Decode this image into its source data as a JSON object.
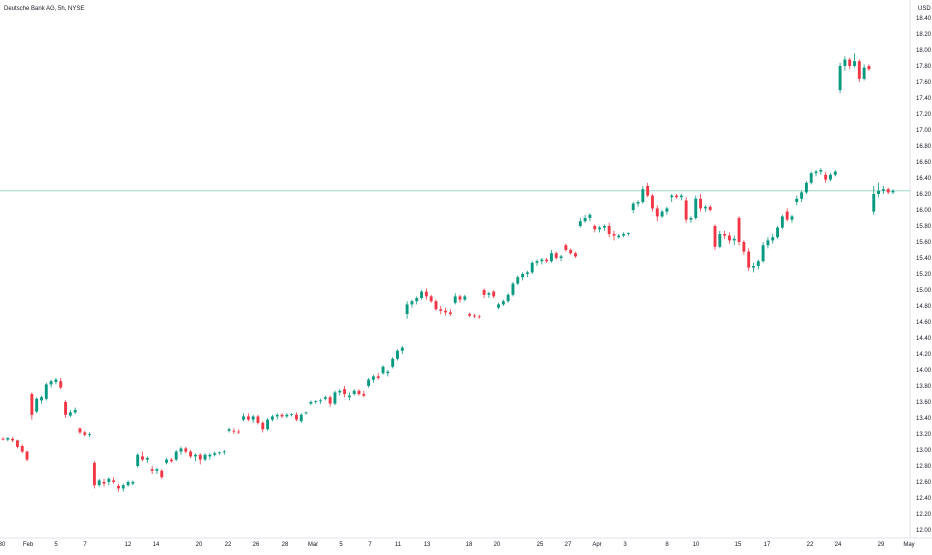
{
  "header": {
    "title": "Deutsche Bank AG, 5h, NYSE"
  },
  "chart_data": {
    "type": "candlestick",
    "title": "Deutsche Bank AG, 5h, NYSE",
    "currency": "USD",
    "ylim": [
      12.0,
      18.5
    ],
    "y_ticks": [
      "12.00",
      "12.20",
      "12.40",
      "12.60",
      "12.80",
      "13.00",
      "13.20",
      "13.40",
      "13.60",
      "13.80",
      "14.00",
      "14.20",
      "14.40",
      "14.60",
      "14.80",
      "15.00",
      "15.20",
      "15.40",
      "15.60",
      "15.80",
      "16.00",
      "16.20",
      "16.40",
      "16.60",
      "16.80",
      "17.00",
      "17.20",
      "17.40",
      "17.60",
      "17.80",
      "18.00",
      "18.20",
      "18.40"
    ],
    "x_ticks": [
      "30",
      "Feb",
      "5",
      "7",
      "12",
      "14",
      "20",
      "22",
      "26",
      "28",
      "Mar",
      "5",
      "7",
      "11",
      "13",
      "18",
      "20",
      "25",
      "27",
      "Apr",
      "3",
      "8",
      "10",
      "15",
      "17",
      "22",
      "24",
      "29",
      "May"
    ],
    "last_price": 16.24,
    "colors": {
      "up": "#089981",
      "down": "#f23645",
      "price_line": "#089981",
      "axis_text": "#131722",
      "grid": "#f0f3fa"
    },
    "grid": false,
    "price_axis": "right",
    "up_candle_color": "#089981",
    "down_candle_color": "#f23645",
    "candles": [
      {
        "o": 13.14,
        "h": 13.16,
        "l": 13.12,
        "c": 13.13
      },
      {
        "o": 13.13,
        "h": 13.16,
        "l": 13.11,
        "c": 13.15
      },
      {
        "o": 13.14,
        "h": 13.16,
        "l": 13.1,
        "c": 13.12
      },
      {
        "o": 13.12,
        "h": 13.13,
        "l": 13.02,
        "c": 13.04
      },
      {
        "o": 13.05,
        "h": 13.07,
        "l": 12.96,
        "c": 12.98
      },
      {
        "o": 12.98,
        "h": 12.99,
        "l": 12.86,
        "c": 12.88
      },
      {
        "o": 13.7,
        "h": 13.72,
        "l": 13.38,
        "c": 13.44
      },
      {
        "o": 13.48,
        "h": 13.66,
        "l": 13.46,
        "c": 13.64
      },
      {
        "o": 13.62,
        "h": 13.68,
        "l": 13.58,
        "c": 13.66
      },
      {
        "o": 13.64,
        "h": 13.84,
        "l": 13.62,
        "c": 13.82
      },
      {
        "o": 13.82,
        "h": 13.88,
        "l": 13.78,
        "c": 13.86
      },
      {
        "o": 13.85,
        "h": 13.9,
        "l": 13.82,
        "c": 13.88
      },
      {
        "o": 13.86,
        "h": 13.9,
        "l": 13.76,
        "c": 13.78
      },
      {
        "o": 13.6,
        "h": 13.62,
        "l": 13.4,
        "c": 13.44
      },
      {
        "o": 13.43,
        "h": 13.5,
        "l": 13.41,
        "c": 13.47
      },
      {
        "o": 13.47,
        "h": 13.53,
        "l": 13.45,
        "c": 13.5
      },
      {
        "o": 13.27,
        "h": 13.28,
        "l": 13.2,
        "c": 13.22
      },
      {
        "o": 13.22,
        "h": 13.24,
        "l": 13.17,
        "c": 13.19
      },
      {
        "o": 13.19,
        "h": 13.22,
        "l": 13.16,
        "c": 13.2
      },
      {
        "o": 12.84,
        "h": 12.86,
        "l": 12.52,
        "c": 12.56
      },
      {
        "o": 12.56,
        "h": 12.64,
        "l": 12.54,
        "c": 12.62
      },
      {
        "o": 12.6,
        "h": 12.64,
        "l": 12.54,
        "c": 12.58
      },
      {
        "o": 12.6,
        "h": 12.66,
        "l": 12.56,
        "c": 12.64
      },
      {
        "o": 12.62,
        "h": 12.66,
        "l": 12.58,
        "c": 12.6
      },
      {
        "o": 12.55,
        "h": 12.58,
        "l": 12.48,
        "c": 12.52
      },
      {
        "o": 12.52,
        "h": 12.58,
        "l": 12.48,
        "c": 12.56
      },
      {
        "o": 12.56,
        "h": 12.62,
        "l": 12.54,
        "c": 12.6
      },
      {
        "o": 12.58,
        "h": 12.62,
        "l": 12.56,
        "c": 12.6
      },
      {
        "o": 12.8,
        "h": 12.96,
        "l": 12.78,
        "c": 12.94
      },
      {
        "o": 12.92,
        "h": 12.98,
        "l": 12.86,
        "c": 12.88
      },
      {
        "o": 12.88,
        "h": 12.92,
        "l": 12.84,
        "c": 12.9
      },
      {
        "o": 12.76,
        "h": 12.8,
        "l": 12.7,
        "c": 12.74
      },
      {
        "o": 12.74,
        "h": 12.78,
        "l": 12.7,
        "c": 12.76
      },
      {
        "o": 12.74,
        "h": 12.76,
        "l": 12.64,
        "c": 12.66
      },
      {
        "o": 12.84,
        "h": 12.9,
        "l": 12.82,
        "c": 12.88
      },
      {
        "o": 12.88,
        "h": 12.9,
        "l": 12.84,
        "c": 12.86
      },
      {
        "o": 12.88,
        "h": 13.0,
        "l": 12.86,
        "c": 12.98
      },
      {
        "o": 12.98,
        "h": 13.04,
        "l": 12.94,
        "c": 13.02
      },
      {
        "o": 13.02,
        "h": 13.04,
        "l": 12.96,
        "c": 12.98
      },
      {
        "o": 12.98,
        "h": 13.0,
        "l": 12.9,
        "c": 12.92
      },
      {
        "o": 12.92,
        "h": 12.96,
        "l": 12.86,
        "c": 12.94
      },
      {
        "o": 12.94,
        "h": 12.96,
        "l": 12.82,
        "c": 12.88
      },
      {
        "o": 12.88,
        "h": 12.96,
        "l": 12.86,
        "c": 12.94
      },
      {
        "o": 12.92,
        "h": 12.96,
        "l": 12.88,
        "c": 12.94
      },
      {
        "o": 12.94,
        "h": 12.98,
        "l": 12.92,
        "c": 12.96
      },
      {
        "o": 12.96,
        "h": 12.98,
        "l": 12.94,
        "c": 12.97
      },
      {
        "o": 12.97,
        "h": 13.0,
        "l": 12.94,
        "c": 12.98
      },
      {
        "o": 13.24,
        "h": 13.28,
        "l": 13.22,
        "c": 13.26
      },
      {
        "o": 13.24,
        "h": 13.27,
        "l": 13.2,
        "c": 13.23
      },
      {
        "o": 13.23,
        "h": 13.26,
        "l": 13.2,
        "c": 13.22
      },
      {
        "o": 13.38,
        "h": 13.46,
        "l": 13.36,
        "c": 13.42
      },
      {
        "o": 13.42,
        "h": 13.46,
        "l": 13.36,
        "c": 13.38
      },
      {
        "o": 13.38,
        "h": 13.44,
        "l": 13.34,
        "c": 13.42
      },
      {
        "o": 13.42,
        "h": 13.44,
        "l": 13.32,
        "c": 13.34
      },
      {
        "o": 13.34,
        "h": 13.36,
        "l": 13.22,
        "c": 13.26
      },
      {
        "o": 13.26,
        "h": 13.4,
        "l": 13.24,
        "c": 13.38
      },
      {
        "o": 13.38,
        "h": 13.44,
        "l": 13.36,
        "c": 13.42
      },
      {
        "o": 13.42,
        "h": 13.46,
        "l": 13.38,
        "c": 13.44
      },
      {
        "o": 13.44,
        "h": 13.46,
        "l": 13.4,
        "c": 13.42
      },
      {
        "o": 13.42,
        "h": 13.46,
        "l": 13.4,
        "c": 13.44
      },
      {
        "o": 13.44,
        "h": 13.46,
        "l": 13.42,
        "c": 13.45
      },
      {
        "o": 13.44,
        "h": 13.47,
        "l": 13.36,
        "c": 13.38
      },
      {
        "o": 13.36,
        "h": 13.46,
        "l": 13.34,
        "c": 13.44
      },
      {
        "o": 13.46,
        "h": 13.48,
        "l": 13.44,
        "c": 13.47
      },
      {
        "o": 13.58,
        "h": 13.62,
        "l": 13.56,
        "c": 13.6
      },
      {
        "o": 13.6,
        "h": 13.62,
        "l": 13.58,
        "c": 13.61
      },
      {
        "o": 13.61,
        "h": 13.64,
        "l": 13.58,
        "c": 13.62
      },
      {
        "o": 13.64,
        "h": 13.68,
        "l": 13.62,
        "c": 13.66
      },
      {
        "o": 13.66,
        "h": 13.68,
        "l": 13.54,
        "c": 13.58
      },
      {
        "o": 13.58,
        "h": 13.74,
        "l": 13.56,
        "c": 13.72
      },
      {
        "o": 13.72,
        "h": 13.76,
        "l": 13.68,
        "c": 13.74
      },
      {
        "o": 13.76,
        "h": 13.8,
        "l": 13.66,
        "c": 13.7
      },
      {
        "o": 13.66,
        "h": 13.72,
        "l": 13.62,
        "c": 13.68
      },
      {
        "o": 13.7,
        "h": 13.76,
        "l": 13.68,
        "c": 13.74
      },
      {
        "o": 13.74,
        "h": 13.76,
        "l": 13.68,
        "c": 13.7
      },
      {
        "o": 13.7,
        "h": 13.74,
        "l": 13.66,
        "c": 13.68
      },
      {
        "o": 13.8,
        "h": 13.9,
        "l": 13.78,
        "c": 13.88
      },
      {
        "o": 13.88,
        "h": 13.94,
        "l": 13.84,
        "c": 13.92
      },
      {
        "o": 13.92,
        "h": 13.96,
        "l": 13.88,
        "c": 13.9
      },
      {
        "o": 13.96,
        "h": 14.06,
        "l": 13.94,
        "c": 14.04
      },
      {
        "o": 13.96,
        "h": 14.0,
        "l": 13.92,
        "c": 13.98
      },
      {
        "o": 14.04,
        "h": 14.16,
        "l": 14.02,
        "c": 14.14
      },
      {
        "o": 14.14,
        "h": 14.26,
        "l": 14.12,
        "c": 14.24
      },
      {
        "o": 14.24,
        "h": 14.3,
        "l": 14.2,
        "c": 14.28
      },
      {
        "o": 14.7,
        "h": 14.86,
        "l": 14.64,
        "c": 14.82
      },
      {
        "o": 14.82,
        "h": 14.88,
        "l": 14.78,
        "c": 14.86
      },
      {
        "o": 14.86,
        "h": 14.92,
        "l": 14.82,
        "c": 14.9
      },
      {
        "o": 14.9,
        "h": 15.0,
        "l": 14.88,
        "c": 14.98
      },
      {
        "o": 14.98,
        "h": 15.02,
        "l": 14.88,
        "c": 14.92
      },
      {
        "o": 14.92,
        "h": 14.94,
        "l": 14.84,
        "c": 14.86
      },
      {
        "o": 14.86,
        "h": 14.88,
        "l": 14.74,
        "c": 14.76
      },
      {
        "o": 14.76,
        "h": 14.8,
        "l": 14.7,
        "c": 14.74
      },
      {
        "o": 14.74,
        "h": 14.78,
        "l": 14.68,
        "c": 14.72
      },
      {
        "o": 14.72,
        "h": 14.76,
        "l": 14.68,
        "c": 14.7
      },
      {
        "o": 14.84,
        "h": 14.96,
        "l": 14.82,
        "c": 14.92
      },
      {
        "o": 14.92,
        "h": 14.94,
        "l": 14.84,
        "c": 14.88
      },
      {
        "o": 14.88,
        "h": 14.94,
        "l": 14.86,
        "c": 14.92
      },
      {
        "o": 14.7,
        "h": 14.72,
        "l": 14.66,
        "c": 14.68
      },
      {
        "o": 14.68,
        "h": 14.7,
        "l": 14.65,
        "c": 14.67
      },
      {
        "o": 14.67,
        "h": 14.69,
        "l": 14.64,
        "c": 14.66
      },
      {
        "o": 15.0,
        "h": 15.02,
        "l": 14.9,
        "c": 14.94
      },
      {
        "o": 14.94,
        "h": 14.98,
        "l": 14.9,
        "c": 14.96
      },
      {
        "o": 14.98,
        "h": 15.0,
        "l": 14.9,
        "c": 14.92
      },
      {
        "o": 14.78,
        "h": 14.84,
        "l": 14.76,
        "c": 14.82
      },
      {
        "o": 14.82,
        "h": 14.88,
        "l": 14.8,
        "c": 14.86
      },
      {
        "o": 14.86,
        "h": 14.96,
        "l": 14.84,
        "c": 14.94
      },
      {
        "o": 14.94,
        "h": 15.1,
        "l": 14.92,
        "c": 15.08
      },
      {
        "o": 15.08,
        "h": 15.18,
        "l": 15.06,
        "c": 15.16
      },
      {
        "o": 15.16,
        "h": 15.22,
        "l": 15.12,
        "c": 15.2
      },
      {
        "o": 15.2,
        "h": 15.24,
        "l": 15.16,
        "c": 15.22
      },
      {
        "o": 15.22,
        "h": 15.36,
        "l": 15.2,
        "c": 15.34
      },
      {
        "o": 15.34,
        "h": 15.38,
        "l": 15.3,
        "c": 15.36
      },
      {
        "o": 15.36,
        "h": 15.4,
        "l": 15.32,
        "c": 15.38
      },
      {
        "o": 15.38,
        "h": 15.4,
        "l": 15.34,
        "c": 15.36
      },
      {
        "o": 15.36,
        "h": 15.5,
        "l": 15.34,
        "c": 15.46
      },
      {
        "o": 15.46,
        "h": 15.48,
        "l": 15.38,
        "c": 15.4
      },
      {
        "o": 15.4,
        "h": 15.44,
        "l": 15.36,
        "c": 15.42
      },
      {
        "o": 15.56,
        "h": 15.58,
        "l": 15.48,
        "c": 15.5
      },
      {
        "o": 15.5,
        "h": 15.52,
        "l": 15.44,
        "c": 15.46
      },
      {
        "o": 15.46,
        "h": 15.48,
        "l": 15.4,
        "c": 15.42
      },
      {
        "o": 15.8,
        "h": 15.9,
        "l": 15.78,
        "c": 15.86
      },
      {
        "o": 15.86,
        "h": 15.94,
        "l": 15.84,
        "c": 15.9
      },
      {
        "o": 15.9,
        "h": 15.96,
        "l": 15.86,
        "c": 15.94
      },
      {
        "o": 15.8,
        "h": 15.82,
        "l": 15.72,
        "c": 15.76
      },
      {
        "o": 15.76,
        "h": 15.8,
        "l": 15.72,
        "c": 15.78
      },
      {
        "o": 15.78,
        "h": 15.82,
        "l": 15.74,
        "c": 15.8
      },
      {
        "o": 15.8,
        "h": 15.84,
        "l": 15.66,
        "c": 15.7
      },
      {
        "o": 15.7,
        "h": 15.74,
        "l": 15.62,
        "c": 15.68
      },
      {
        "o": 15.66,
        "h": 15.7,
        "l": 15.64,
        "c": 15.68
      },
      {
        "o": 15.68,
        "h": 15.72,
        "l": 15.66,
        "c": 15.7
      },
      {
        "o": 15.7,
        "h": 15.72,
        "l": 15.68,
        "c": 15.71
      },
      {
        "o": 16.0,
        "h": 16.1,
        "l": 15.96,
        "c": 16.08
      },
      {
        "o": 16.08,
        "h": 16.12,
        "l": 16.04,
        "c": 16.1
      },
      {
        "o": 16.1,
        "h": 16.3,
        "l": 16.08,
        "c": 16.26
      },
      {
        "o": 16.3,
        "h": 16.34,
        "l": 16.16,
        "c": 16.18
      },
      {
        "o": 16.18,
        "h": 16.2,
        "l": 15.98,
        "c": 16.02
      },
      {
        "o": 16.02,
        "h": 16.06,
        "l": 15.86,
        "c": 15.92
      },
      {
        "o": 15.92,
        "h": 16.0,
        "l": 15.9,
        "c": 15.98
      },
      {
        "o": 15.98,
        "h": 16.04,
        "l": 15.94,
        "c": 16.02
      },
      {
        "o": 16.16,
        "h": 16.2,
        "l": 16.1,
        "c": 16.18
      },
      {
        "o": 16.18,
        "h": 16.2,
        "l": 16.14,
        "c": 16.16
      },
      {
        "o": 16.16,
        "h": 16.2,
        "l": 16.12,
        "c": 16.18
      },
      {
        "o": 16.12,
        "h": 16.16,
        "l": 15.84,
        "c": 15.88
      },
      {
        "o": 15.88,
        "h": 15.92,
        "l": 15.84,
        "c": 15.9
      },
      {
        "o": 15.9,
        "h": 16.18,
        "l": 15.88,
        "c": 16.14
      },
      {
        "o": 16.14,
        "h": 16.2,
        "l": 15.98,
        "c": 16.02
      },
      {
        "o": 16.02,
        "h": 16.06,
        "l": 15.98,
        "c": 16.04
      },
      {
        "o": 16.04,
        "h": 16.06,
        "l": 15.98,
        "c": 16.0
      },
      {
        "o": 15.8,
        "h": 15.82,
        "l": 15.5,
        "c": 15.54
      },
      {
        "o": 15.54,
        "h": 15.74,
        "l": 15.52,
        "c": 15.7
      },
      {
        "o": 15.7,
        "h": 15.74,
        "l": 15.64,
        "c": 15.68
      },
      {
        "o": 15.68,
        "h": 15.72,
        "l": 15.58,
        "c": 15.62
      },
      {
        "o": 15.62,
        "h": 15.68,
        "l": 15.56,
        "c": 15.64
      },
      {
        "o": 15.9,
        "h": 15.92,
        "l": 15.56,
        "c": 15.6
      },
      {
        "o": 15.6,
        "h": 15.62,
        "l": 15.44,
        "c": 15.48
      },
      {
        "o": 15.48,
        "h": 15.52,
        "l": 15.24,
        "c": 15.28
      },
      {
        "o": 15.28,
        "h": 15.34,
        "l": 15.22,
        "c": 15.3
      },
      {
        "o": 15.3,
        "h": 15.38,
        "l": 15.26,
        "c": 15.36
      },
      {
        "o": 15.36,
        "h": 15.6,
        "l": 15.34,
        "c": 15.56
      },
      {
        "o": 15.56,
        "h": 15.66,
        "l": 15.52,
        "c": 15.62
      },
      {
        "o": 15.62,
        "h": 15.7,
        "l": 15.58,
        "c": 15.66
      },
      {
        "o": 15.66,
        "h": 15.8,
        "l": 15.64,
        "c": 15.78
      },
      {
        "o": 15.78,
        "h": 15.94,
        "l": 15.76,
        "c": 15.92
      },
      {
        "o": 15.98,
        "h": 16.02,
        "l": 15.86,
        "c": 15.88
      },
      {
        "o": 15.88,
        "h": 15.94,
        "l": 15.84,
        "c": 15.92
      },
      {
        "o": 16.1,
        "h": 16.18,
        "l": 16.06,
        "c": 16.14
      },
      {
        "o": 16.14,
        "h": 16.24,
        "l": 16.1,
        "c": 16.22
      },
      {
        "o": 16.22,
        "h": 16.36,
        "l": 16.2,
        "c": 16.34
      },
      {
        "o": 16.34,
        "h": 16.48,
        "l": 16.32,
        "c": 16.46
      },
      {
        "o": 16.46,
        "h": 16.5,
        "l": 16.42,
        "c": 16.48
      },
      {
        "o": 16.48,
        "h": 16.52,
        "l": 16.44,
        "c": 16.5
      },
      {
        "o": 16.44,
        "h": 16.48,
        "l": 16.34,
        "c": 16.38
      },
      {
        "o": 16.38,
        "h": 16.46,
        "l": 16.36,
        "c": 16.44
      },
      {
        "o": 16.44,
        "h": 16.5,
        "l": 16.42,
        "c": 16.48
      },
      {
        "o": 17.5,
        "h": 17.84,
        "l": 17.46,
        "c": 17.8
      },
      {
        "o": 17.8,
        "h": 17.92,
        "l": 17.74,
        "c": 17.88
      },
      {
        "o": 17.88,
        "h": 17.9,
        "l": 17.76,
        "c": 17.8
      },
      {
        "o": 17.8,
        "h": 17.96,
        "l": 17.78,
        "c": 17.86
      },
      {
        "o": 17.86,
        "h": 17.88,
        "l": 17.6,
        "c": 17.64
      },
      {
        "o": 17.64,
        "h": 17.82,
        "l": 17.62,
        "c": 17.78
      },
      {
        "o": 17.8,
        "h": 17.82,
        "l": 17.74,
        "c": 17.76
      },
      {
        "o": 15.98,
        "h": 16.3,
        "l": 15.94,
        "c": 16.2
      },
      {
        "o": 16.2,
        "h": 16.34,
        "l": 16.16,
        "c": 16.24
      },
      {
        "o": 16.24,
        "h": 16.3,
        "l": 16.2,
        "c": 16.26
      },
      {
        "o": 16.26,
        "h": 16.28,
        "l": 16.2,
        "c": 16.22
      },
      {
        "o": 16.22,
        "h": 16.26,
        "l": 16.2,
        "c": 16.24
      }
    ]
  }
}
